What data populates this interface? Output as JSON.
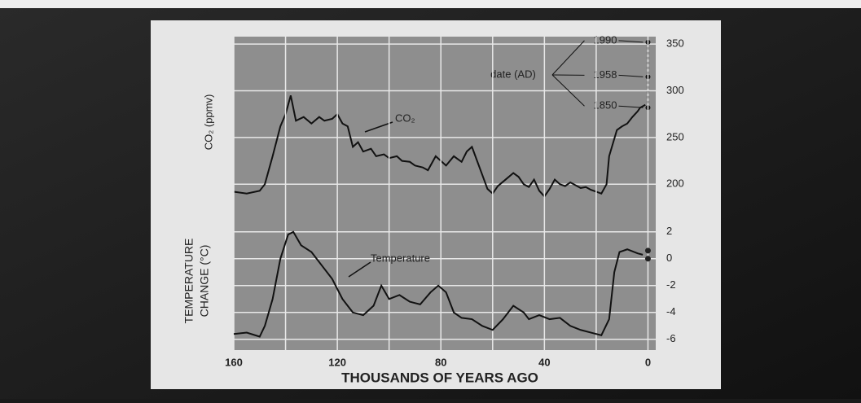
{
  "chart_data": [
    {
      "type": "line",
      "y_label": "CO₂ (ppmv)",
      "series_label": "CO₂",
      "date_label": "date (AD)",
      "dates": [
        {
          "label": "1990",
          "value": 352
        },
        {
          "label": "1958",
          "value": 315
        },
        {
          "label": "1850",
          "value": 282
        }
      ],
      "color": "#111111",
      "xlim": [
        160,
        -3
      ],
      "ylim": [
        175,
        358
      ],
      "yticks": [
        200,
        250,
        300,
        350
      ],
      "grid": true,
      "x": [
        160,
        155,
        150,
        148,
        145,
        142,
        140,
        138,
        136,
        133,
        130,
        127,
        125,
        122,
        120,
        118,
        116,
        114,
        112,
        110,
        107,
        105,
        102,
        100,
        97,
        95,
        92,
        90,
        87,
        85,
        82,
        80,
        78,
        75,
        72,
        70,
        68,
        66,
        64,
        62,
        60,
        58,
        55,
        52,
        50,
        48,
        46,
        44,
        42,
        40,
        38,
        36,
        34,
        32,
        30,
        28,
        26,
        24,
        22,
        20,
        18,
        16,
        15,
        12,
        10,
        8,
        6,
        4,
        3,
        1
      ],
      "values": [
        192,
        190,
        193,
        200,
        230,
        262,
        275,
        295,
        268,
        272,
        265,
        272,
        268,
        270,
        275,
        265,
        262,
        240,
        245,
        235,
        238,
        230,
        232,
        228,
        230,
        225,
        224,
        220,
        218,
        215,
        230,
        225,
        220,
        230,
        224,
        235,
        240,
        225,
        210,
        195,
        190,
        198,
        205,
        212,
        208,
        200,
        197,
        205,
        193,
        187,
        195,
        205,
        200,
        198,
        202,
        199,
        196,
        197,
        194,
        192,
        190,
        200,
        230,
        258,
        262,
        265,
        272,
        278,
        282,
        285
      ]
    },
    {
      "type": "line",
      "y_label": [
        "TEMPERATURE",
        "CHANGE (°C)"
      ],
      "series_label": "Temperature",
      "x_label": "THOUSANDS OF YEARS AGO",
      "color": "#111111",
      "xlim": [
        160,
        -3
      ],
      "ylim": [
        -6.8,
        3.2
      ],
      "yticks": [
        2,
        0,
        -2,
        -4,
        -6
      ],
      "xticks": [
        160,
        120,
        80,
        40,
        0
      ],
      "xminor": [
        140,
        100,
        60,
        20
      ],
      "grid": true,
      "end_points": [
        0.6,
        0
      ],
      "x": [
        160,
        155,
        150,
        148,
        145,
        142,
        139,
        137,
        134,
        130,
        126,
        122,
        118,
        114,
        110,
        106,
        103,
        100,
        96,
        92,
        88,
        84,
        81,
        78,
        75,
        72,
        68,
        64,
        60,
        56,
        52,
        48,
        46,
        42,
        38,
        34,
        30,
        26,
        22,
        18,
        15,
        13,
        11,
        8,
        4,
        2
      ],
      "values": [
        -5.6,
        -5.5,
        -5.8,
        -5.0,
        -3.0,
        0.0,
        1.8,
        2.0,
        1.0,
        0.5,
        -0.5,
        -1.5,
        -3.0,
        -4.0,
        -4.2,
        -3.5,
        -2.0,
        -3.0,
        -2.7,
        -3.2,
        -3.4,
        -2.5,
        -2.0,
        -2.5,
        -4.0,
        -4.4,
        -4.5,
        -5.0,
        -5.3,
        -4.5,
        -3.5,
        -4.0,
        -4.5,
        -4.2,
        -4.5,
        -4.4,
        -5.0,
        -5.3,
        -5.5,
        -5.7,
        -4.5,
        -1.0,
        0.5,
        0.7,
        0.4,
        0.3
      ]
    }
  ]
}
